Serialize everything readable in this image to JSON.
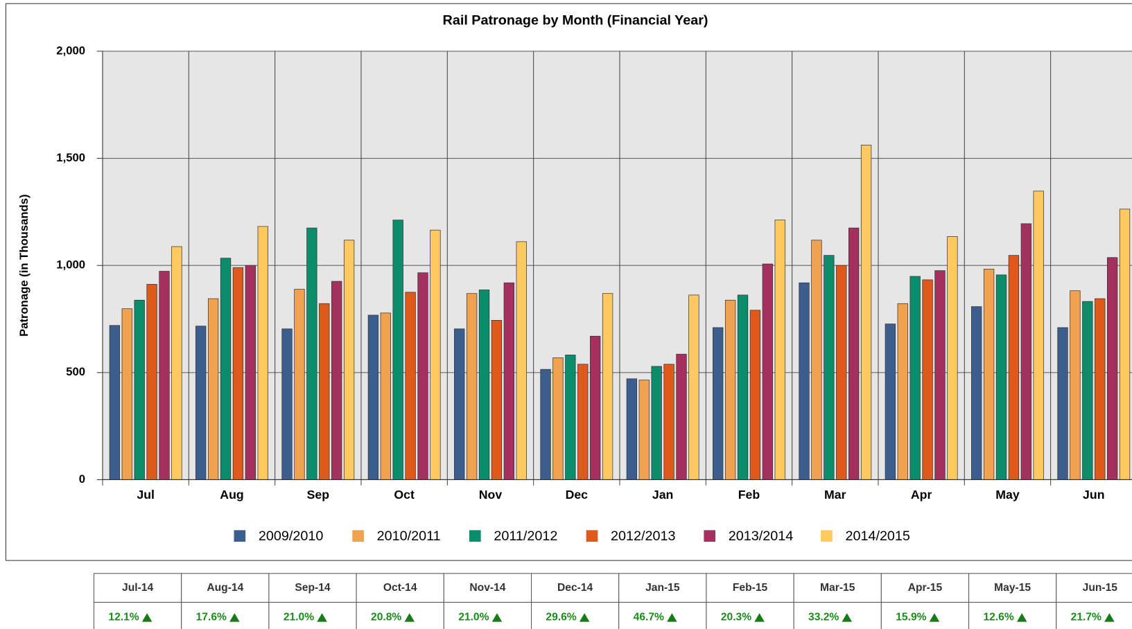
{
  "chart_data": {
    "type": "bar",
    "title": "Rail Patronage by Month (Financial Year)",
    "y_label": "Patronage (in Thousands)",
    "categories": [
      "Jul",
      "Aug",
      "Sep",
      "Oct",
      "Nov",
      "Dec",
      "Jan",
      "Feb",
      "Mar",
      "Apr",
      "May",
      "Jun"
    ],
    "series": [
      {
        "name": "2009/2010",
        "color": "#3b5e8e",
        "values": [
          720,
          717,
          704,
          768,
          704,
          515,
          471,
          710,
          919,
          727,
          808,
          710
        ]
      },
      {
        "name": "2010/2011",
        "color": "#f0a251",
        "values": [
          798,
          845,
          889,
          778,
          869,
          569,
          465,
          838,
          1118,
          822,
          983,
          882
        ]
      },
      {
        "name": "2011/2012",
        "color": "#0b8c6b",
        "values": [
          838,
          1034,
          1175,
          1212,
          886,
          582,
          529,
          862,
          1047,
          949,
          956,
          832
        ]
      },
      {
        "name": "2012/2013",
        "color": "#e0591c",
        "values": [
          912,
          990,
          822,
          875,
          744,
          539,
          539,
          791,
          1000,
          933,
          1047,
          845
        ]
      },
      {
        "name": "2013/2014",
        "color": "#a3305f",
        "values": [
          973,
          1000,
          926,
          966,
          919,
          670,
          586,
          1007,
          1175,
          976,
          1195,
          1037
        ]
      },
      {
        "name": "2014/2015",
        "color": "#fdc960",
        "values": [
          1088,
          1182,
          1118,
          1165,
          1111,
          869,
          862,
          1212,
          1562,
          1135,
          1347,
          1263
        ]
      }
    ],
    "ylim": [
      0,
      2000
    ],
    "yticks": [
      0,
      500,
      {
        "value": 1000,
        "label": "1,000"
      },
      {
        "value": 1500,
        "label": "1,500"
      },
      {
        "value": 2000,
        "label": "2,000"
      }
    ],
    "grid": true
  },
  "table": {
    "header": [
      "Jul-14",
      "Aug-14",
      "Sep-14",
      "Oct-14",
      "Nov-14",
      "Dec-14",
      "Jan-15",
      "Feb-15",
      "Mar-15",
      "Apr-15",
      "May-15",
      "Jun-15"
    ],
    "rows": [
      [
        "12.1%",
        "17.6%",
        "21.0%",
        "20.8%",
        "21.0%",
        "29.6%",
        "46.7%",
        "20.3%",
        "33.2%",
        "15.9%",
        "12.6%",
        "21.7%"
      ]
    ]
  }
}
